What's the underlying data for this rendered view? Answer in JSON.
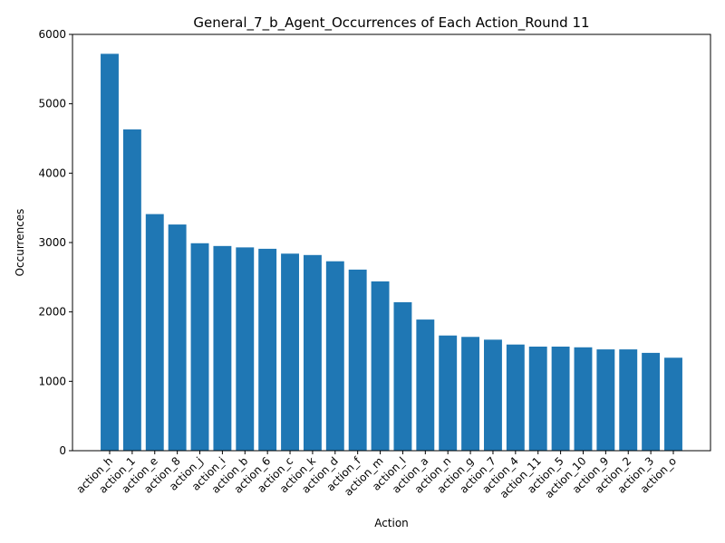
{
  "chart_data": {
    "type": "bar",
    "title": "General_7_b_Agent_Occurrences of Each Action_Round 11",
    "xlabel": "Action",
    "ylabel": "Occurrences",
    "ylim": [
      0,
      6000
    ],
    "yticks": [
      0,
      1000,
      2000,
      3000,
      4000,
      5000,
      6000
    ],
    "grid": false,
    "color": "#1f77b4",
    "categories": [
      "action_h",
      "action_1",
      "action_e",
      "action_8",
      "action_j",
      "action_i",
      "action_b",
      "action_6",
      "action_c",
      "action_k",
      "action_d",
      "action_f",
      "action_m",
      "action_l",
      "action_a",
      "action_n",
      "action_g",
      "action_7",
      "action_4",
      "action_11",
      "action_5",
      "action_10",
      "action_9",
      "action_2",
      "action_3",
      "action_o"
    ],
    "values": [
      5720,
      4630,
      3410,
      3260,
      2990,
      2950,
      2930,
      2910,
      2840,
      2820,
      2730,
      2610,
      2440,
      2140,
      1890,
      1660,
      1640,
      1600,
      1530,
      1500,
      1500,
      1490,
      1460,
      1460,
      1410,
      1340
    ]
  }
}
